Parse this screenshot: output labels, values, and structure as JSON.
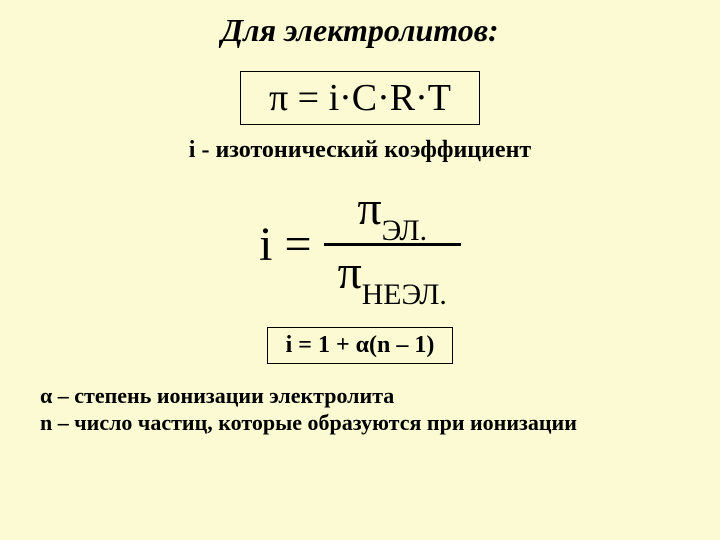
{
  "title": "Для электролитов:",
  "formula1": "π = i·C·R·T",
  "caption1": "i - изотонический коэффициент",
  "fraction": {
    "lhs": "i",
    "eq": "=",
    "num_sym": "π",
    "num_sub": "ЭЛ.",
    "den_sym": "π",
    "den_sub": "НЕЭЛ."
  },
  "formula2": "i = 1 + α(n – 1)",
  "note1": "α – степень ионизации электролита",
  "note2": "n – число частиц, которые образуются при ионизации"
}
